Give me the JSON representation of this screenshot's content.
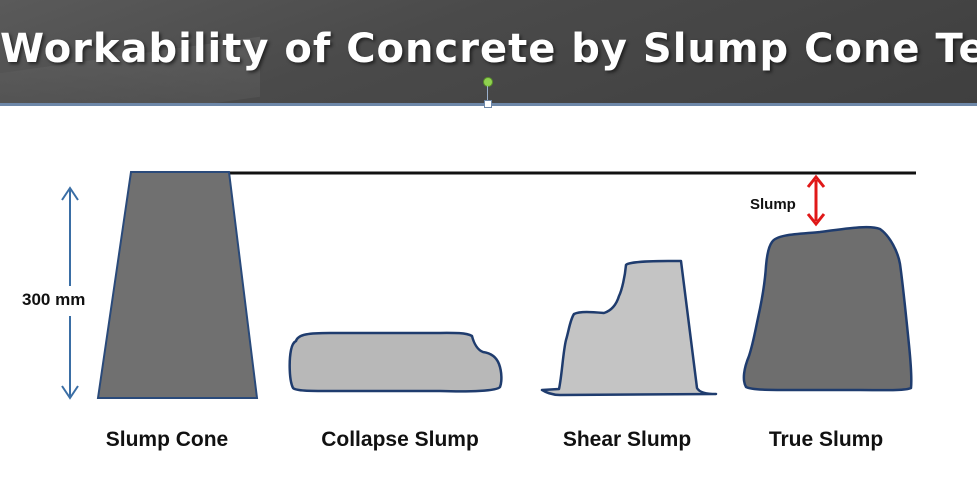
{
  "title": "Workability of Concrete by Slump Cone Test",
  "height_label": "300 mm",
  "slump_label": "Slump",
  "shapes": [
    {
      "label": "Slump Cone"
    },
    {
      "label": "Collapse Slump"
    },
    {
      "label": "Shear Slump"
    },
    {
      "label": "True Slump"
    }
  ],
  "colors": {
    "title_bg": "#4a4a4a",
    "cone_fill": "#707070",
    "collapse_fill": "#b8b8b8",
    "shear_fill": "#c4c4c4",
    "true_fill": "#6e6e6e",
    "outline": "#1f3c6e",
    "height_arrow": "#3a6ea5",
    "slump_arrow": "#e01818"
  }
}
